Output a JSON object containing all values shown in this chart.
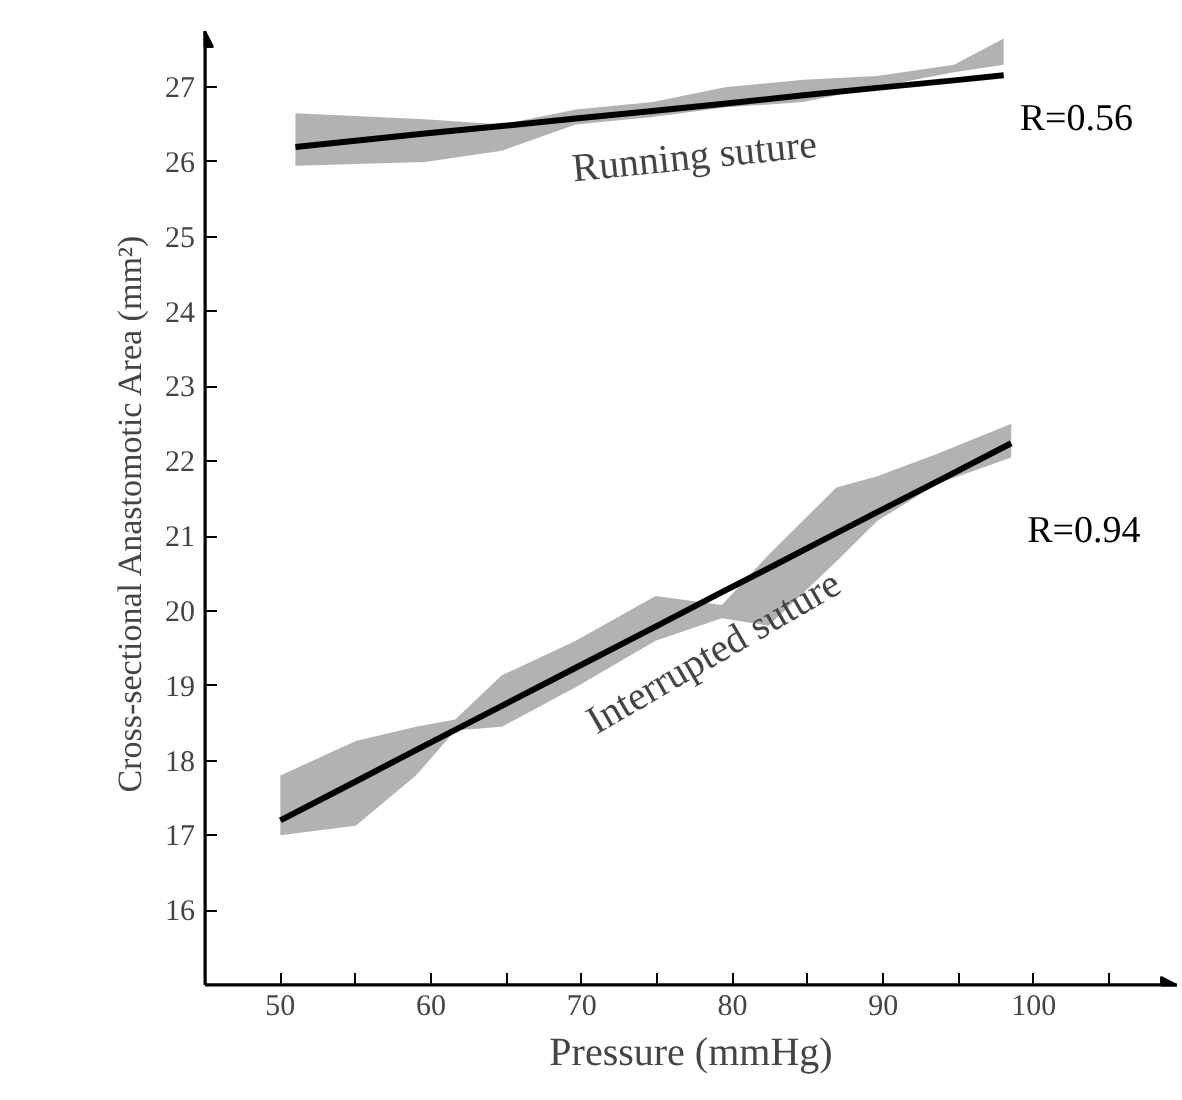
{
  "chart_data": {
    "type": "line",
    "xlabel": "Pressure (mmHg)",
    "ylabel": "Cross-sectional Anastomotic Area  (mm²)",
    "xlim": [
      45,
      109.5
    ],
    "ylim": [
      15,
      27.75
    ],
    "xticks": [
      50,
      {
        "value": 55,
        "label": null
      },
      60,
      {
        "value": 65,
        "label": null
      },
      70,
      {
        "value": 75,
        "label": null
      },
      80,
      {
        "value": 85,
        "label": null
      },
      90,
      {
        "value": 95,
        "label": null
      },
      100,
      {
        "value": 105,
        "label": null
      }
    ],
    "yticks": [
      16,
      17,
      18,
      19,
      20,
      21,
      22,
      23,
      24,
      25,
      26,
      27
    ],
    "grid": false,
    "marker": "none",
    "line_style": "solid",
    "series": [
      {
        "name": "Running suture",
        "color": "#000000",
        "x": [
          51,
          59.6,
          64.7,
          69.6,
          74.7,
          79.6,
          84.7,
          89.6,
          94.7,
          98
        ],
        "values": [
          26.2,
          26.38,
          26.48,
          26.58,
          26.68,
          26.78,
          26.89,
          26.99,
          27.09,
          27.16
        ],
        "lower": [
          25.95,
          26.0,
          26.15,
          26.5,
          26.6,
          26.73,
          26.8,
          27.0,
          27.2,
          27.3
        ],
        "upper": [
          26.65,
          26.57,
          26.5,
          26.7,
          26.8,
          27.0,
          27.1,
          27.15,
          27.3,
          27.65
        ]
      },
      {
        "name": "Interrupted suture",
        "color": "#000000",
        "x": [
          50,
          55,
          59,
          61.6,
          64.7,
          69.6,
          74.9,
          79.3,
          82.4,
          86.9,
          89.6,
          93.6,
          98.5
        ],
        "values": [
          17.2,
          17.72,
          18.14,
          18.41,
          18.73,
          19.24,
          19.79,
          20.25,
          20.57,
          21.04,
          21.32,
          21.73,
          22.24
        ],
        "lower": [
          17.0,
          17.13,
          17.8,
          18.4,
          18.45,
          18.98,
          19.6,
          19.9,
          19.8,
          20.66,
          21.2,
          21.7,
          22.05
        ],
        "upper": [
          17.8,
          18.26,
          18.45,
          18.55,
          19.14,
          19.6,
          20.2,
          20.08,
          20.75,
          21.65,
          21.8,
          22.1,
          22.5
        ]
      }
    ],
    "annotations": [
      "R=0.56",
      "R=0.94"
    ]
  }
}
